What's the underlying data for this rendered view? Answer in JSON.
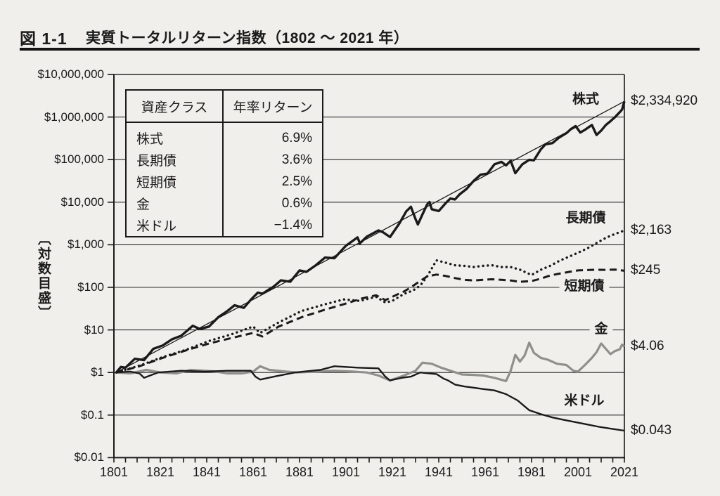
{
  "header": {
    "figure_label": "図 1-1",
    "title": "実質トータルリターン指数（1802 ～ 2021 年）"
  },
  "legend_table": {
    "headers": [
      "資産クラス",
      "年率リターン"
    ],
    "rows": [
      [
        "株式",
        "6.9%"
      ],
      [
        "長期債",
        "3.6%"
      ],
      [
        "短期債",
        "2.5%"
      ],
      [
        "金",
        "0.6%"
      ],
      [
        "米ドル",
        "−1.4%"
      ]
    ]
  },
  "y_axis": {
    "label": "〔対数目盛〕",
    "scale": "log",
    "ticks": [
      {
        "label": "$10,000,000",
        "value": 10000000
      },
      {
        "label": "$1,000,000",
        "value": 1000000
      },
      {
        "label": "$100,000",
        "value": 100000
      },
      {
        "label": "$10,000",
        "value": 10000
      },
      {
        "label": "$1,000",
        "value": 1000
      },
      {
        "label": "$100",
        "value": 100
      },
      {
        "label": "$10",
        "value": 10
      },
      {
        "label": "$1",
        "value": 1
      },
      {
        "label": "$0.1",
        "value": 0.1
      },
      {
        "label": "$0.01",
        "value": 0.01
      }
    ]
  },
  "x_axis": {
    "range": [
      1801,
      2021
    ],
    "major_labels": [
      1801,
      1821,
      1841,
      1861,
      1881,
      1901,
      1921,
      1941,
      1961,
      1981,
      2001,
      2021
    ],
    "minor_tick_step": 5
  },
  "colors": {
    "background": "#f0efec",
    "ink": "#1a1a1a",
    "grid": "#2b2b2b",
    "gold_gray": "#8f8f8c"
  },
  "chart_data": {
    "type": "line",
    "title": "実質トータルリターン指数（1802 ～ 2021 年）",
    "x_range": [
      1801,
      2021
    ],
    "y_range": [
      0.01,
      10000000
    ],
    "grid": "horizontal-decades",
    "series": [
      {
        "name": "stocks",
        "label": "株式",
        "annual_return": "6.9%",
        "end_label": "$2,334,920",
        "style": "solid-thick",
        "color": "#1a1a1a",
        "points": [
          [
            1802,
            1.0
          ],
          [
            1804,
            1.35
          ],
          [
            1806,
            1.3
          ],
          [
            1810,
            2.1
          ],
          [
            1814,
            1.95
          ],
          [
            1818,
            3.6
          ],
          [
            1822,
            4.3
          ],
          [
            1826,
            6.0
          ],
          [
            1830,
            7.3
          ],
          [
            1835,
            12.5
          ],
          [
            1838,
            10.5
          ],
          [
            1842,
            12.0
          ],
          [
            1846,
            20
          ],
          [
            1850,
            28
          ],
          [
            1853,
            38
          ],
          [
            1857,
            33
          ],
          [
            1860,
            51
          ],
          [
            1863,
            75
          ],
          [
            1865,
            71
          ],
          [
            1870,
            106
          ],
          [
            1873,
            146
          ],
          [
            1877,
            135
          ],
          [
            1881,
            250
          ],
          [
            1884,
            232
          ],
          [
            1888,
            330
          ],
          [
            1892,
            500
          ],
          [
            1896,
            483
          ],
          [
            1901,
            950
          ],
          [
            1906,
            1490
          ],
          [
            1907,
            1080
          ],
          [
            1910,
            1550
          ],
          [
            1915,
            2170
          ],
          [
            1917,
            1970
          ],
          [
            1920,
            1520
          ],
          [
            1924,
            3150
          ],
          [
            1927,
            6100
          ],
          [
            1929,
            7800
          ],
          [
            1931,
            4000
          ],
          [
            1932,
            3000
          ],
          [
            1934,
            5200
          ],
          [
            1936,
            8850
          ],
          [
            1937,
            10100
          ],
          [
            1938,
            6840
          ],
          [
            1941,
            6200
          ],
          [
            1944,
            9500
          ],
          [
            1946,
            12200
          ],
          [
            1948,
            11600
          ],
          [
            1950,
            15300
          ],
          [
            1953,
            20500
          ],
          [
            1956,
            31500
          ],
          [
            1959,
            44200
          ],
          [
            1962,
            47100
          ],
          [
            1965,
            77600
          ],
          [
            1968,
            88500
          ],
          [
            1970,
            73300
          ],
          [
            1972,
            94200
          ],
          [
            1974,
            48100
          ],
          [
            1977,
            77500
          ],
          [
            1980,
            99100
          ],
          [
            1982,
            96400
          ],
          [
            1985,
            174600
          ],
          [
            1987,
            229000
          ],
          [
            1990,
            243800
          ],
          [
            1993,
            334000
          ],
          [
            1996,
            418000
          ],
          [
            1998,
            525000
          ],
          [
            2000,
            613000
          ],
          [
            2002,
            433000
          ],
          [
            2004,
            500000
          ],
          [
            2007,
            650000
          ],
          [
            2009,
            380000
          ],
          [
            2011,
            480000
          ],
          [
            2013,
            650000
          ],
          [
            2015,
            800000
          ],
          [
            2017,
            1000000
          ],
          [
            2019,
            1300000
          ],
          [
            2020,
            1500000
          ],
          [
            2021,
            2334920
          ]
        ]
      },
      {
        "name": "trend",
        "label": "",
        "end_label": "",
        "style": "trend",
        "color": "#1a1a1a",
        "points": [
          [
            1802,
            1
          ],
          [
            2021,
            2334920
          ]
        ]
      },
      {
        "name": "long-bonds",
        "label": "長期債",
        "annual_return": "3.6%",
        "end_label": "$2,163",
        "style": "dotted",
        "color": "#1a1a1a",
        "points": [
          [
            1802,
            1
          ],
          [
            1812,
            1.45
          ],
          [
            1822,
            2.3
          ],
          [
            1832,
            3.4
          ],
          [
            1842,
            5.5
          ],
          [
            1852,
            8
          ],
          [
            1861,
            12
          ],
          [
            1864,
            8.5
          ],
          [
            1872,
            15
          ],
          [
            1882,
            28
          ],
          [
            1892,
            40
          ],
          [
            1900,
            52
          ],
          [
            1907,
            48
          ],
          [
            1914,
            60
          ],
          [
            1918,
            44
          ],
          [
            1921,
            48
          ],
          [
            1926,
            70
          ],
          [
            1930,
            85
          ],
          [
            1933,
            110
          ],
          [
            1936,
            180
          ],
          [
            1940,
            430
          ],
          [
            1944,
            380
          ],
          [
            1948,
            330
          ],
          [
            1952,
            320
          ],
          [
            1956,
            300
          ],
          [
            1960,
            320
          ],
          [
            1964,
            330
          ],
          [
            1968,
            300
          ],
          [
            1972,
            300
          ],
          [
            1976,
            260
          ],
          [
            1981,
            195
          ],
          [
            1985,
            260
          ],
          [
            1989,
            320
          ],
          [
            1993,
            420
          ],
          [
            1997,
            520
          ],
          [
            2001,
            650
          ],
          [
            2005,
            820
          ],
          [
            2009,
            1100
          ],
          [
            2013,
            1450
          ],
          [
            2017,
            1800
          ],
          [
            2021,
            2163
          ]
        ]
      },
      {
        "name": "short-bonds",
        "label": "短期債",
        "annual_return": "2.5%",
        "end_label": "$245",
        "style": "dashed",
        "color": "#1a1a1a",
        "points": [
          [
            1802,
            1
          ],
          [
            1812,
            1.4
          ],
          [
            1822,
            2.2
          ],
          [
            1832,
            3.3
          ],
          [
            1842,
            4.8
          ],
          [
            1852,
            6.5
          ],
          [
            1861,
            8.5
          ],
          [
            1865,
            7
          ],
          [
            1872,
            12
          ],
          [
            1882,
            20
          ],
          [
            1892,
            30
          ],
          [
            1900,
            40
          ],
          [
            1908,
            55
          ],
          [
            1914,
            65
          ],
          [
            1918,
            50
          ],
          [
            1921,
            60
          ],
          [
            1926,
            80
          ],
          [
            1929,
            100
          ],
          [
            1932,
            130
          ],
          [
            1936,
            180
          ],
          [
            1940,
            200
          ],
          [
            1944,
            185
          ],
          [
            1948,
            165
          ],
          [
            1952,
            150
          ],
          [
            1956,
            145
          ],
          [
            1960,
            150
          ],
          [
            1964,
            155
          ],
          [
            1968,
            150
          ],
          [
            1972,
            145
          ],
          [
            1976,
            135
          ],
          [
            1981,
            140
          ],
          [
            1985,
            160
          ],
          [
            1989,
            190
          ],
          [
            1993,
            210
          ],
          [
            1997,
            230
          ],
          [
            2001,
            250
          ],
          [
            2005,
            255
          ],
          [
            2009,
            260
          ],
          [
            2013,
            258
          ],
          [
            2017,
            262
          ],
          [
            2021,
            245
          ]
        ]
      },
      {
        "name": "gold",
        "label": "金",
        "annual_return": "0.6%",
        "end_label": "$4.06",
        "style": "solid-gray",
        "color": "#8f8f8c",
        "points": [
          [
            1802,
            1
          ],
          [
            1808,
            0.95
          ],
          [
            1815,
            1.15
          ],
          [
            1821,
            1.0
          ],
          [
            1828,
            0.95
          ],
          [
            1834,
            1.15
          ],
          [
            1840,
            1.1
          ],
          [
            1845,
            1.05
          ],
          [
            1850,
            0.95
          ],
          [
            1856,
            0.95
          ],
          [
            1861,
            1.05
          ],
          [
            1864,
            1.4
          ],
          [
            1868,
            1.15
          ],
          [
            1875,
            1.05
          ],
          [
            1880,
            1.0
          ],
          [
            1888,
            1.05
          ],
          [
            1896,
            1.1
          ],
          [
            1904,
            1.05
          ],
          [
            1910,
            1.0
          ],
          [
            1915,
            0.85
          ],
          [
            1920,
            0.65
          ],
          [
            1926,
            0.85
          ],
          [
            1931,
            1.1
          ],
          [
            1934,
            1.7
          ],
          [
            1938,
            1.6
          ],
          [
            1942,
            1.3
          ],
          [
            1946,
            1.1
          ],
          [
            1951,
            0.9
          ],
          [
            1956,
            0.88
          ],
          [
            1960,
            0.85
          ],
          [
            1965,
            0.75
          ],
          [
            1970,
            0.63
          ],
          [
            1972,
            1.1
          ],
          [
            1974,
            2.6
          ],
          [
            1976,
            1.8
          ],
          [
            1978,
            2.5
          ],
          [
            1980,
            5.0
          ],
          [
            1982,
            2.9
          ],
          [
            1985,
            2.2
          ],
          [
            1988,
            2.0
          ],
          [
            1992,
            1.6
          ],
          [
            1996,
            1.5
          ],
          [
            1999,
            1.1
          ],
          [
            2001,
            1.05
          ],
          [
            2004,
            1.5
          ],
          [
            2007,
            2.2
          ],
          [
            2009,
            3.0
          ],
          [
            2011,
            4.8
          ],
          [
            2013,
            3.6
          ],
          [
            2015,
            2.7
          ],
          [
            2017,
            3.2
          ],
          [
            2019,
            3.5
          ],
          [
            2020,
            4.5
          ],
          [
            2021,
            4.06
          ]
        ]
      },
      {
        "name": "us-dollar",
        "label": "米ドル",
        "annual_return": "−1.4%",
        "end_label": "$0.043",
        "style": "solid-thin",
        "color": "#1a1a1a",
        "points": [
          [
            1802,
            1.0
          ],
          [
            1808,
            1.05
          ],
          [
            1812,
            0.95
          ],
          [
            1814,
            0.75
          ],
          [
            1820,
            1.0
          ],
          [
            1830,
            1.1
          ],
          [
            1840,
            1.05
          ],
          [
            1850,
            1.1
          ],
          [
            1860,
            1.1
          ],
          [
            1862,
            0.8
          ],
          [
            1864,
            0.68
          ],
          [
            1870,
            0.8
          ],
          [
            1879,
            1.0
          ],
          [
            1890,
            1.15
          ],
          [
            1896,
            1.4
          ],
          [
            1906,
            1.3
          ],
          [
            1915,
            1.25
          ],
          [
            1918,
            0.8
          ],
          [
            1920,
            0.65
          ],
          [
            1925,
            0.75
          ],
          [
            1929,
            0.8
          ],
          [
            1933,
            1.0
          ],
          [
            1937,
            0.95
          ],
          [
            1940,
            0.92
          ],
          [
            1943,
            0.72
          ],
          [
            1945,
            0.65
          ],
          [
            1948,
            0.52
          ],
          [
            1952,
            0.47
          ],
          [
            1956,
            0.44
          ],
          [
            1960,
            0.41
          ],
          [
            1965,
            0.38
          ],
          [
            1970,
            0.31
          ],
          [
            1975,
            0.22
          ],
          [
            1980,
            0.13
          ],
          [
            1985,
            0.105
          ],
          [
            1990,
            0.088
          ],
          [
            1995,
            0.077
          ],
          [
            2000,
            0.068
          ],
          [
            2005,
            0.06
          ],
          [
            2010,
            0.053
          ],
          [
            2015,
            0.048
          ],
          [
            2021,
            0.043
          ]
        ]
      }
    ]
  }
}
